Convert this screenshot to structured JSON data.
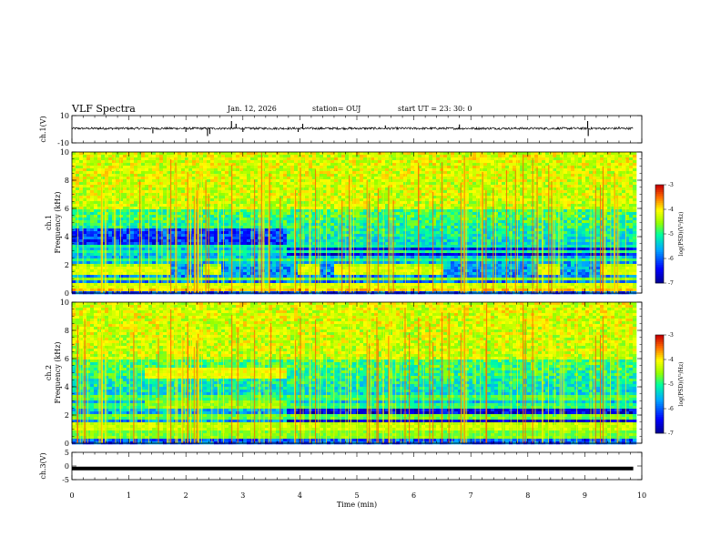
{
  "header": {
    "title": "VLF Spectra",
    "date": "Jan. 12, 2026",
    "station": "station= OUJ",
    "start": "start  UT =   23: 30: 0"
  },
  "chart_data": [
    {
      "name": "ch1-waveform",
      "type": "line",
      "ylabel": "ch.1(V)",
      "ylim": [
        -10,
        10
      ],
      "yticks": [
        "10",
        "-10"
      ],
      "xlim": [
        0,
        9.85
      ],
      "baseline": 0.6,
      "spikes": [
        {
          "x": 0.5,
          "v": 1.6
        },
        {
          "x": 1.42,
          "v": -3.0
        },
        {
          "x": 1.97,
          "v": 1.5
        },
        {
          "x": 2.0,
          "v": -2.0
        },
        {
          "x": 2.38,
          "v": -5.0
        },
        {
          "x": 2.42,
          "v": -3.5
        },
        {
          "x": 2.8,
          "v": 6.0
        },
        {
          "x": 2.88,
          "v": 4.0
        },
        {
          "x": 3.0,
          "v": -2.0
        },
        {
          "x": 3.97,
          "v": -2.0
        },
        {
          "x": 4.05,
          "v": 4.0
        },
        {
          "x": 5.5,
          "v": 2.8
        },
        {
          "x": 6.8,
          "v": 3.5
        },
        {
          "x": 9.05,
          "v": 6.0
        },
        {
          "x": 9.06,
          "v": -5.0
        },
        {
          "x": 9.6,
          "v": 2.0
        }
      ]
    },
    {
      "name": "ch1-spectrogram",
      "type": "heatmap",
      "ylabel": "ch.1",
      "ylabel2": "Frequency (kHz)",
      "ylim": [
        0,
        10
      ],
      "yticks": [
        "0",
        "2",
        "4",
        "6",
        "8",
        "10"
      ],
      "xlim": [
        0,
        9.85
      ],
      "colorbar": {
        "min": -7,
        "max": -3,
        "ticks": [
          "-3",
          "-4",
          "-5",
          "-6",
          "-7"
        ],
        "label": "log(PSD)(V²/Hz)"
      },
      "bands": [
        {
          "f": 0.25,
          "w": 0.15,
          "v": -3.8
        },
        {
          "f": 0.5,
          "w": 0.3,
          "v": -4.2
        },
        {
          "f": 1.0,
          "w": 0.12,
          "v": -4.6
        },
        {
          "f": 1.55,
          "w": 0.25,
          "v": -4.2
        },
        {
          "f": 1.85,
          "w": 0.2,
          "v": -4.4
        },
        {
          "f": 2.3,
          "w": 0.12,
          "v": -4.9
        },
        {
          "f": 2.9,
          "w": 0.1,
          "v": -5.0
        },
        {
          "f": 3.3,
          "w": 0.1,
          "v": -5.1
        }
      ],
      "gaps": [
        [
          1.7,
          2.25
        ],
        [
          2.6,
          3.95
        ],
        [
          4.3,
          4.55
        ],
        [
          6.5,
          8.15
        ],
        [
          8.55,
          9.25
        ]
      ],
      "quiet": [
        [
          0.0,
          3.75,
          3.5,
          4.5
        ],
        [
          3.75,
          9.85,
          2.6,
          3.4
        ]
      ]
    },
    {
      "name": "ch2-spectrogram",
      "type": "heatmap",
      "ylabel": "ch.2",
      "ylabel2": "Frequency (kHz)",
      "ylim": [
        0,
        10
      ],
      "yticks": [
        "0",
        "2",
        "4",
        "6",
        "8",
        "10"
      ],
      "xlim": [
        0,
        9.85
      ],
      "colorbar": {
        "min": -7,
        "max": -3,
        "ticks": [
          "-3",
          "-4",
          "-5",
          "-6",
          "-7"
        ],
        "label": "log(PSD)(V²/Hz)"
      },
      "bands": [
        {
          "f": 0.6,
          "w": 0.3,
          "v": -4.6
        },
        {
          "f": 1.2,
          "w": 0.2,
          "v": -4.3
        },
        {
          "f": 1.9,
          "w": 0.15,
          "v": -4.7
        },
        {
          "f": 2.6,
          "w": 0.2,
          "v": -4.9
        },
        {
          "f": 3.2,
          "w": 0.25,
          "v": -4.8
        }
      ],
      "blocks": [
        [
          1.25,
          3.75,
          4.6,
          5.4,
          -4.1
        ],
        [
          1.25,
          3.75,
          2.4,
          3.0,
          -4.5
        ]
      ],
      "gaps": [],
      "quiet": [
        [
          3.75,
          9.85,
          1.5,
          2.6
        ]
      ]
    },
    {
      "name": "ch3-waveform",
      "type": "line",
      "ylabel": "ch.3(V)",
      "ylim": [
        -5,
        5
      ],
      "yticks": [
        "5",
        "0",
        "-5"
      ],
      "xlim": [
        0,
        9.85
      ],
      "baseline": -0.9,
      "spikes": []
    }
  ],
  "xaxis": {
    "label": "Time  (min)",
    "ticks": [
      "0",
      "1",
      "2",
      "3",
      "4",
      "5",
      "6",
      "7",
      "8",
      "9",
      "10"
    ]
  }
}
